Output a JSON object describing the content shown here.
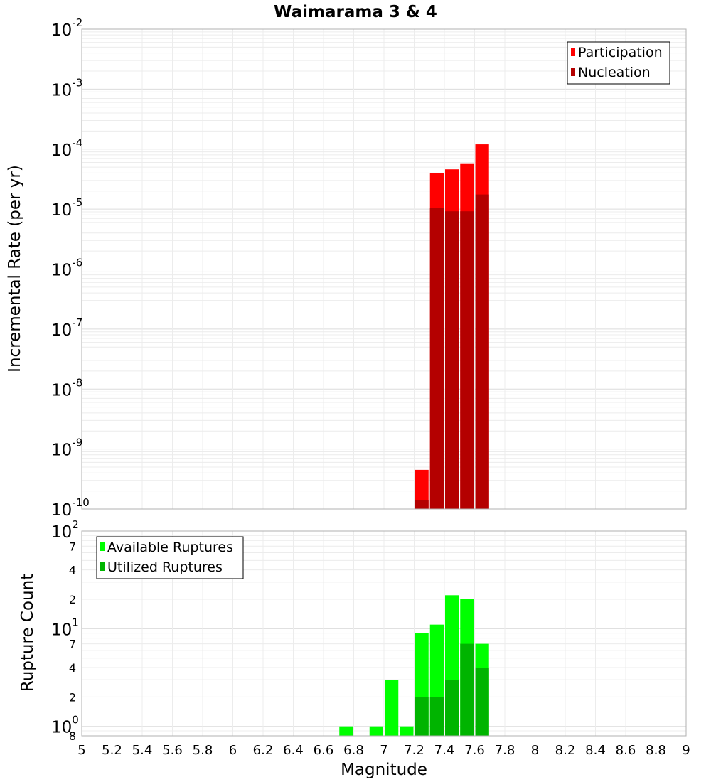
{
  "chart_data": [
    {
      "type": "bar",
      "title": "Waimarama 3 & 4",
      "xlabel": "",
      "ylabel": "Incremental Rate (per yr)",
      "y_scale": "log",
      "ylim": [
        1e-10,
        0.01
      ],
      "xlim": [
        5,
        9
      ],
      "bin_width": 0.1,
      "grid": true,
      "legend_position": "top-right",
      "y_tick_labels": [
        {
          "value": 0.01,
          "base": "10",
          "exp": "-2"
        },
        {
          "value": 0.001,
          "base": "10",
          "exp": "-3"
        },
        {
          "value": 0.0001,
          "base": "10",
          "exp": "-4"
        },
        {
          "value": 1e-05,
          "base": "10",
          "exp": "-5"
        },
        {
          "value": 1e-06,
          "base": "10",
          "exp": "-6"
        },
        {
          "value": 1e-07,
          "base": "10",
          "exp": "-7"
        },
        {
          "value": 1e-08,
          "base": "10",
          "exp": "-8"
        },
        {
          "value": 1e-09,
          "base": "10",
          "exp": "-9"
        },
        {
          "value": 1e-10,
          "base": "10",
          "exp": "-10"
        }
      ],
      "x": [
        7.25,
        7.35,
        7.45,
        7.55,
        7.65
      ],
      "series": [
        {
          "name": "Participation",
          "color": "#ff0000",
          "values": [
            4.5e-10,
            4e-05,
            4.6e-05,
            5.8e-05,
            0.00012
          ]
        },
        {
          "name": "Nucleation",
          "color": "#b40000",
          "values": [
            1.4e-10,
            1.05e-05,
            9.2e-06,
            9.2e-06,
            1.75e-05
          ]
        }
      ]
    },
    {
      "type": "bar",
      "title": "",
      "xlabel": "Magnitude",
      "ylabel": "Rupture Count",
      "y_scale": "log",
      "ylim": [
        0.8,
        100
      ],
      "xlim": [
        5,
        9
      ],
      "bin_width": 0.1,
      "grid": true,
      "legend_position": "top-left",
      "y_tick_labels": [
        {
          "value": 100,
          "base": "10",
          "exp": "2"
        },
        {
          "value": 70,
          "base": "7",
          "exp": ""
        },
        {
          "value": 40,
          "base": "4",
          "exp": ""
        },
        {
          "value": 20,
          "base": "2",
          "exp": ""
        },
        {
          "value": 10,
          "base": "10",
          "exp": "1"
        },
        {
          "value": 7,
          "base": "7",
          "exp": ""
        },
        {
          "value": 4,
          "base": "4",
          "exp": ""
        },
        {
          "value": 2,
          "base": "2",
          "exp": ""
        },
        {
          "value": 1,
          "base": "10",
          "exp": "0"
        },
        {
          "value": 0.8,
          "base": "8",
          "exp": ""
        }
      ],
      "x_tick_labels": [
        "5",
        "5.2",
        "5.4",
        "5.6",
        "5.8",
        "6",
        "6.2",
        "6.4",
        "6.6",
        "6.8",
        "7",
        "7.2",
        "7.4",
        "7.6",
        "7.8",
        "8",
        "8.2",
        "8.4",
        "8.6",
        "8.8",
        "9"
      ],
      "x": [
        6.75,
        6.95,
        7.05,
        7.15,
        7.25,
        7.35,
        7.45,
        7.55,
        7.65
      ],
      "series": [
        {
          "name": "Available Ruptures",
          "color": "#00ff00",
          "values": [
            1,
            1,
            3,
            1,
            9,
            11,
            22,
            20,
            7
          ]
        },
        {
          "name": "Utilized Ruptures",
          "color": "#00b400",
          "values": [
            null,
            null,
            null,
            null,
            2,
            2,
            3,
            7,
            4
          ]
        }
      ]
    }
  ]
}
